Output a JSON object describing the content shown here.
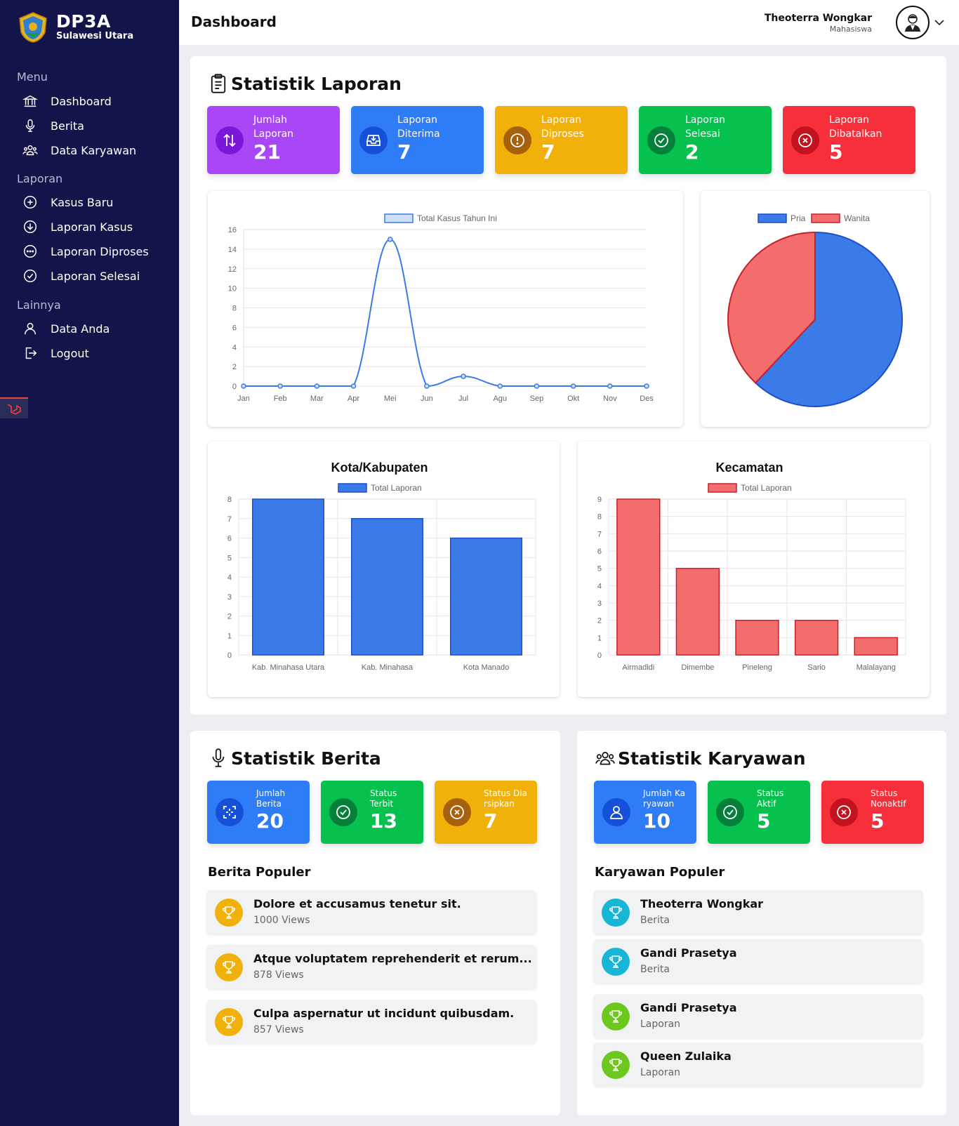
{
  "brand": {
    "title": "DP3A",
    "subtitle": "Sulawesi Utara"
  },
  "sidebar": {
    "sections": [
      {
        "label": "Menu",
        "items": [
          {
            "label": "Dashboard",
            "icon": "bank-icon"
          },
          {
            "label": "Berita",
            "icon": "microphone-icon"
          },
          {
            "label": "Data Karyawan",
            "icon": "people-icon"
          }
        ]
      },
      {
        "label": "Laporan",
        "items": [
          {
            "label": "Kasus Baru",
            "icon": "plus-circle-icon"
          },
          {
            "label": "Laporan Kasus",
            "icon": "arrow-down-circle-icon"
          },
          {
            "label": "Laporan Diproses",
            "icon": "dots-circle-icon"
          },
          {
            "label": "Laporan Selesai",
            "icon": "check-circle-icon"
          }
        ]
      },
      {
        "label": "Lainnya",
        "items": [
          {
            "label": "Data Anda",
            "icon": "person-icon"
          },
          {
            "label": "Logout",
            "icon": "logout-icon"
          }
        ]
      }
    ]
  },
  "header": {
    "title": "Dashboard",
    "user_name": "Theoterra Wongkar",
    "user_role": "Mahasiswa"
  },
  "laporan": {
    "title": "Statistik Laporan",
    "stats": [
      {
        "label1": "Jumlah",
        "label2": "Laporan",
        "value": "21",
        "color": "#a946f5",
        "circle": "#7b17d8",
        "icon": "arrows-updown-icon"
      },
      {
        "label1": "Laporan",
        "label2": "Diterima",
        "value": "7",
        "color": "#2e7cf6",
        "circle": "#1550d8",
        "icon": "inbox-icon"
      },
      {
        "label1": "Laporan",
        "label2": "Diproses",
        "value": "7",
        "color": "#f2b00a",
        "circle": "#a7600b",
        "icon": "exclamation-circle-icon"
      },
      {
        "label1": "Laporan",
        "label2": "Selesai",
        "value": "2",
        "color": "#07c14e",
        "circle": "#05803a",
        "icon": "check-circle-icon"
      },
      {
        "label1": "Laporan",
        "label2": "Dibatalkan",
        "value": "5",
        "color": "#f72f3a",
        "circle": "#c3131f",
        "icon": "x-circle-icon"
      }
    ]
  },
  "chart_data": [
    {
      "type": "line",
      "legend": [
        "Total Kasus Tahun Ini"
      ],
      "categories": [
        "Jan",
        "Feb",
        "Mar",
        "Apr",
        "Mei",
        "Jun",
        "Jul",
        "Agu",
        "Sep",
        "Okt",
        "Nov",
        "Des"
      ],
      "series": [
        {
          "name": "Total Kasus Tahun Ini",
          "values": [
            0,
            0,
            0,
            0,
            15,
            0,
            1,
            0,
            0,
            0,
            0,
            0
          ]
        }
      ],
      "ylim": [
        0,
        16
      ],
      "yticks": [
        0,
        2,
        4,
        6,
        8,
        10,
        12,
        14,
        16
      ],
      "color": "#3b7be8",
      "legend_placement": "top"
    },
    {
      "type": "pie",
      "labels": [
        "Pria",
        "Wanita"
      ],
      "values": [
        62,
        38
      ],
      "colors": [
        "#3b7be8",
        "#f46d6d"
      ],
      "stroke_colors": [
        "#1f4ec9",
        "#c8202a"
      ],
      "legend_placement": "top"
    },
    {
      "type": "bar",
      "title": "Kota/Kabupaten",
      "legend": [
        "Total Laporan"
      ],
      "categories": [
        "Kab. Minahasa Utara",
        "Kab. Minahasa",
        "Kota Manado"
      ],
      "series": [
        {
          "name": "Total Laporan",
          "values": [
            8,
            7,
            6
          ]
        }
      ],
      "ylim": [
        0,
        8
      ],
      "yticks": [
        0,
        1,
        2,
        3,
        4,
        5,
        6,
        7,
        8
      ],
      "color": "#3b7be8",
      "stroke": "#1f4ec9"
    },
    {
      "type": "bar",
      "title": "Kecamatan",
      "legend": [
        "Total Laporan"
      ],
      "categories": [
        "Airmadidi",
        "Dimembe",
        "Pineleng",
        "Sario",
        "Malalayang"
      ],
      "series": [
        {
          "name": "Total Laporan",
          "values": [
            9,
            5,
            2,
            2,
            1
          ]
        }
      ],
      "ylim": [
        0,
        9
      ],
      "yticks": [
        0,
        1,
        2,
        3,
        4,
        5,
        6,
        7,
        8,
        9
      ],
      "color": "#f46d6d",
      "stroke": "#c8202a"
    }
  ],
  "berita": {
    "title": "Statistik Berita",
    "stats": [
      {
        "label1": "Jumlah",
        "label2": "Berita",
        "value": "20",
        "color": "#2e7cf6",
        "circle": "#1550d8",
        "icon": "scan-icon"
      },
      {
        "label1": "Status",
        "label2": "Terbit",
        "value": "13",
        "color": "#07c14e",
        "circle": "#05803a",
        "icon": "check-circle-icon"
      },
      {
        "label1": "Status Dia",
        "label2": "rsipkan",
        "value": "7",
        "color": "#f2b00a",
        "circle": "#a7600b",
        "icon": "x-circle-icon"
      }
    ],
    "popular_title": "Berita Populer",
    "popular": [
      {
        "title": "Dolore et accusamus tenetur sit.",
        "sub": "1000 Views"
      },
      {
        "title": "Atque voluptatem reprehenderit et rerum...",
        "sub": "878 Views"
      },
      {
        "title": "Culpa aspernatur ut incidunt quibusdam.",
        "sub": "857 Views"
      }
    ],
    "trophy_color": "#f2b00a"
  },
  "karyawan": {
    "title": "Statistik Karyawan",
    "stats": [
      {
        "label1": "Jumlah Ka",
        "label2": "ryawan",
        "value": "10",
        "color": "#2e7cf6",
        "circle": "#1550d8",
        "icon": "person-icon"
      },
      {
        "label1": "Status",
        "label2": "Aktif",
        "value": "5",
        "color": "#07c14e",
        "circle": "#05803a",
        "icon": "check-circle-icon"
      },
      {
        "label1": "Status",
        "label2": "Nonaktif",
        "value": "5",
        "color": "#f72f3a",
        "circle": "#c3131f",
        "icon": "x-circle-icon"
      }
    ],
    "popular_title": "Karyawan Populer",
    "popular": [
      {
        "title": "Theoterra Wongkar",
        "sub": "Berita",
        "color": "#17b6d6"
      },
      {
        "title": "Gandi Prasetya",
        "sub": "Berita",
        "color": "#17b6d6"
      },
      {
        "title": "Gandi Prasetya",
        "sub": "Laporan",
        "color": "#6cc81c"
      },
      {
        "title": "Queen Zulaika",
        "sub": "Laporan",
        "color": "#6cc81c"
      }
    ]
  }
}
